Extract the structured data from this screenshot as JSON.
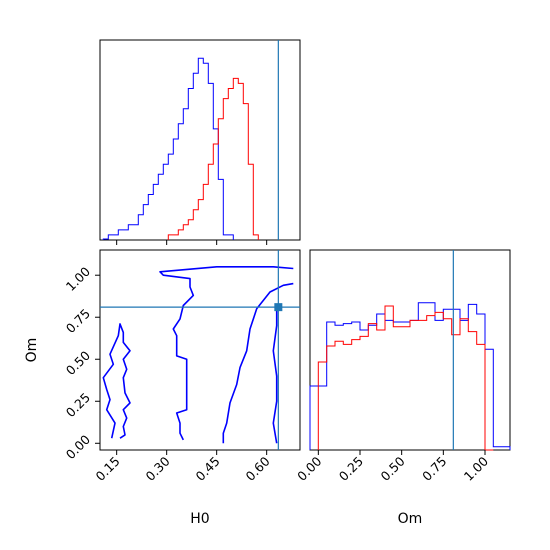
{
  "chart_data": {
    "type": "corner",
    "parameters": [
      "H0",
      "Om"
    ],
    "truth": {
      "H0": 0.635,
      "Om": 0.81
    },
    "colors": {
      "series_a": "#0000ff",
      "series_b": "#ff0000",
      "truth": "#1f77b4"
    },
    "panels": [
      {
        "id": "hist_H0",
        "type": "histogram",
        "xlim": [
          0.1,
          0.7
        ],
        "tick_values": [
          0.15,
          0.3,
          0.45,
          0.6
        ],
        "tick_labels": [],
        "series": [
          {
            "color_key": "series_a",
            "step": 0.015,
            "start": 0.11,
            "heights": [
              0.2,
              1,
              1,
              2,
              2,
              3,
              3,
              5,
              7,
              9,
              11,
              13,
              15,
              17,
              20,
              23,
              26,
              30,
              33,
              36,
              35,
              31,
              22,
              12,
              1,
              1
            ]
          },
          {
            "color_key": "series_b",
            "step": 0.015,
            "start": 0.305,
            "heights": [
              1,
              1,
              2,
              3,
              4,
              6,
              8,
              11,
              15,
              19,
              24,
              28,
              30,
              32,
              31,
              27,
              15,
              1
            ]
          }
        ]
      },
      {
        "id": "hist_Om",
        "type": "histogram",
        "xlim": [
          -0.05,
          1.15
        ],
        "ylim": [
          0,
          1.25
        ],
        "tick_values": [
          0.0,
          0.25,
          0.5,
          0.75,
          1.0
        ],
        "tick_labels": [
          "0.00",
          "0.25",
          "0.50",
          "0.75",
          "1.00"
        ],
        "xlabel": "Om",
        "series": [
          {
            "color_key": "series_a",
            "step": 0.05,
            "start": -0.05,
            "heights": [
              0.4,
              0.4,
              0.8,
              0.78,
              0.79,
              0.8,
              0.75,
              0.78,
              0.85,
              0.81,
              0.8,
              0.8,
              0.81,
              0.92,
              0.92,
              0.81,
              0.88,
              0.88,
              0.81,
              0.91,
              0.85,
              0.63,
              0.02,
              0.02
            ]
          },
          {
            "color_key": "series_b",
            "step": 0.05,
            "start": 0.0,
            "heights": [
              0.55,
              0.65,
              0.68,
              0.66,
              0.69,
              0.71,
              0.79,
              0.75,
              0.9,
              0.77,
              0.77,
              0.81,
              0.81,
              0.84,
              0.86,
              0.82,
              0.72,
              0.82,
              0.74,
              0.66,
              0.0
            ]
          }
        ]
      },
      {
        "id": "contour_H0_Om",
        "type": "contour",
        "xlim": [
          0.1,
          0.7
        ],
        "ylim": [
          -0.04,
          1.15
        ],
        "x_tick_values": [
          0.15,
          0.3,
          0.45,
          0.6
        ],
        "x_tick_labels": [
          "0.15",
          "0.30",
          "0.45",
          "0.60"
        ],
        "y_tick_values": [
          0.0,
          0.25,
          0.5,
          0.75,
          1.0
        ],
        "y_tick_labels": [
          "0.00",
          "0.25",
          "0.50",
          "0.75",
          "1.00"
        ],
        "xlabel": "H0",
        "ylabel": "Om",
        "contours": [
          {
            "color_key": "series_a",
            "points": [
              [
                0.35,
                0.02
              ],
              [
                0.34,
                0.06
              ],
              [
                0.34,
                0.12
              ],
              [
                0.33,
                0.18
              ],
              [
                0.36,
                0.2
              ],
              [
                0.36,
                0.3
              ],
              [
                0.36,
                0.5
              ],
              [
                0.33,
                0.52
              ],
              [
                0.33,
                0.64
              ],
              [
                0.32,
                0.68
              ],
              [
                0.34,
                0.74
              ],
              [
                0.35,
                0.82
              ],
              [
                0.38,
                0.88
              ],
              [
                0.37,
                0.93
              ],
              [
                0.37,
                0.98
              ],
              [
                0.29,
                1.0
              ],
              [
                0.28,
                1.02
              ],
              [
                0.45,
                1.05
              ],
              [
                0.55,
                1.05
              ],
              [
                0.62,
                1.05
              ],
              [
                0.68,
                1.04
              ]
            ]
          },
          {
            "color_key": "series_a",
            "points": [
              [
                0.68,
                0.95
              ],
              [
                0.65,
                0.94
              ],
              [
                0.61,
                0.9
              ],
              [
                0.57,
                0.8
              ],
              [
                0.55,
                0.68
              ],
              [
                0.54,
                0.55
              ],
              [
                0.52,
                0.45
              ],
              [
                0.51,
                0.35
              ],
              [
                0.49,
                0.24
              ],
              [
                0.48,
                0.12
              ],
              [
                0.47,
                0.06
              ],
              [
                0.47,
                0.0
              ]
            ]
          },
          {
            "color_key": "series_a",
            "points": [
              [
                0.63,
                0.0
              ],
              [
                0.62,
                0.12
              ],
              [
                0.63,
                0.25
              ],
              [
                0.63,
                0.4
              ],
              [
                0.62,
                0.55
              ],
              [
                0.63,
                0.7
              ],
              [
                0.63,
                0.82
              ]
            ]
          },
          {
            "color_key": "series_a",
            "points": [
              [
                0.135,
                0.03
              ],
              [
                0.145,
                0.12
              ],
              [
                0.12,
                0.2
              ],
              [
                0.13,
                0.26
              ],
              [
                0.12,
                0.32
              ],
              [
                0.11,
                0.39
              ],
              [
                0.14,
                0.47
              ],
              [
                0.13,
                0.53
              ],
              [
                0.155,
                0.64
              ],
              [
                0.16,
                0.71
              ],
              [
                0.17,
                0.66
              ],
              [
                0.17,
                0.6
              ],
              [
                0.19,
                0.55
              ],
              [
                0.17,
                0.5
              ],
              [
                0.18,
                0.44
              ],
              [
                0.17,
                0.39
              ],
              [
                0.175,
                0.3
              ],
              [
                0.19,
                0.24
              ],
              [
                0.17,
                0.2
              ],
              [
                0.18,
                0.15
              ],
              [
                0.17,
                0.1
              ],
              [
                0.175,
                0.05
              ],
              [
                0.16,
                0.03
              ]
            ]
          }
        ]
      }
    ]
  }
}
